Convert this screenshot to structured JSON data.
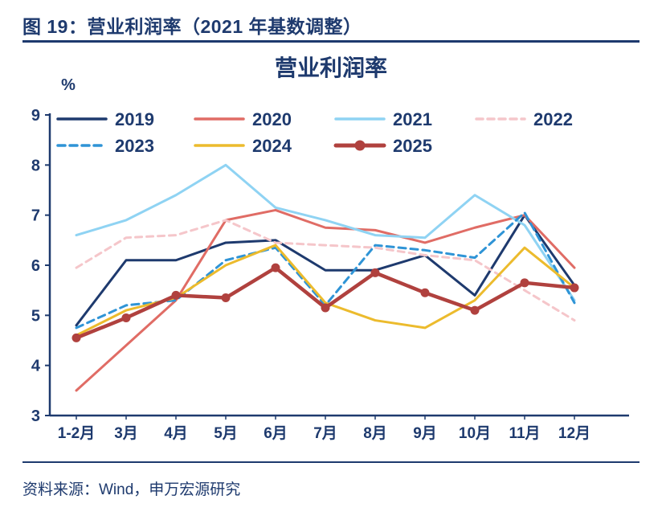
{
  "header": {
    "title": "图 19：营业利润率（2021 年基数调整）"
  },
  "footer": {
    "source": "资料来源：Wind，申万宏源研究"
  },
  "colors": {
    "axis": "#1e3a6e",
    "title_text": "#1e3a6e"
  },
  "chart_data": {
    "type": "line",
    "title": "营业利润率",
    "ylabel": "%",
    "xlabel": "",
    "ylim": [
      3,
      9
    ],
    "yticks": [
      3,
      4,
      5,
      6,
      7,
      8,
      9
    ],
    "grid": false,
    "legend_position": "top-inside, two rows",
    "categories": [
      "1-2月",
      "3月",
      "4月",
      "5月",
      "6月",
      "7月",
      "8月",
      "9月",
      "10月",
      "11月",
      "12月"
    ],
    "series": [
      {
        "name": "2019",
        "color": "#1e3a6e",
        "dash": null,
        "marker": false,
        "width": 3,
        "values": [
          4.8,
          6.1,
          6.1,
          6.45,
          6.5,
          5.9,
          5.9,
          6.2,
          5.4,
          7.0,
          5.6
        ]
      },
      {
        "name": "2020",
        "color": "#e06c65",
        "dash": null,
        "marker": false,
        "width": 3,
        "values": [
          3.5,
          4.4,
          5.3,
          6.9,
          7.1,
          6.75,
          6.7,
          6.45,
          6.75,
          7.0,
          5.95
        ]
      },
      {
        "name": "2021",
        "color": "#8fd3f3",
        "dash": null,
        "marker": false,
        "width": 3,
        "values": [
          6.6,
          6.9,
          7.4,
          8.0,
          7.15,
          6.9,
          6.6,
          6.55,
          7.4,
          6.8,
          5.3
        ]
      },
      {
        "name": "2022",
        "color": "#f5c6ca",
        "dash": "8 6",
        "marker": false,
        "width": 3,
        "values": [
          5.95,
          6.55,
          6.6,
          6.9,
          6.45,
          6.4,
          6.35,
          6.2,
          6.1,
          5.5,
          4.9
        ]
      },
      {
        "name": "2023",
        "color": "#2f94d6",
        "dash": "9 6",
        "marker": false,
        "width": 3,
        "values": [
          4.75,
          5.2,
          5.3,
          6.1,
          6.35,
          5.2,
          6.4,
          6.3,
          6.15,
          7.05,
          5.25
        ]
      },
      {
        "name": "2024",
        "color": "#ecbb2d",
        "dash": null,
        "marker": false,
        "width": 3,
        "values": [
          4.6,
          5.1,
          5.35,
          6.0,
          6.4,
          5.25,
          4.9,
          4.75,
          5.3,
          6.35,
          5.55
        ]
      },
      {
        "name": "2025",
        "color": "#b0413e",
        "dash": null,
        "marker": true,
        "width": 4.5,
        "values": [
          4.55,
          4.95,
          5.4,
          5.35,
          5.95,
          5.15,
          5.85,
          5.45,
          5.1,
          5.65,
          5.55
        ]
      }
    ]
  }
}
